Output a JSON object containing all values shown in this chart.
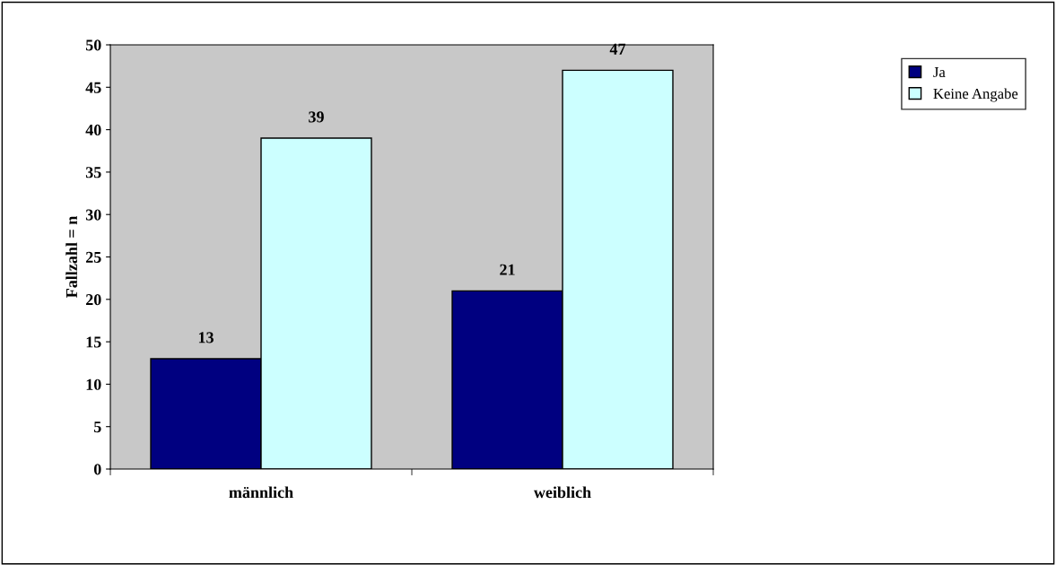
{
  "chart_data": {
    "type": "bar",
    "ylabel": "Fallzahl = n",
    "categories": [
      "männlich",
      "weiblich"
    ],
    "series": [
      {
        "name": "Ja",
        "color": "#000080",
        "values": [
          13,
          21
        ]
      },
      {
        "name": "Keine Angabe",
        "color": "#ccffff",
        "values": [
          39,
          47
        ]
      }
    ],
    "ylim": [
      0,
      50
    ],
    "yticks": [
      0,
      5,
      10,
      15,
      20,
      25,
      30,
      35,
      40,
      45,
      50
    ],
    "data_labels": true,
    "legend": "top right",
    "grid": false
  }
}
